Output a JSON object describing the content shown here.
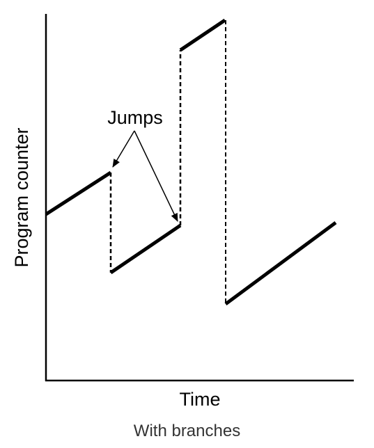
{
  "diagram": {
    "axes": {
      "y_label": "Program counter",
      "x_label": "Time"
    },
    "annotation": "Jumps",
    "caption": "With branches",
    "colors": {
      "line": "#000000",
      "caption": "#333333"
    }
  }
}
